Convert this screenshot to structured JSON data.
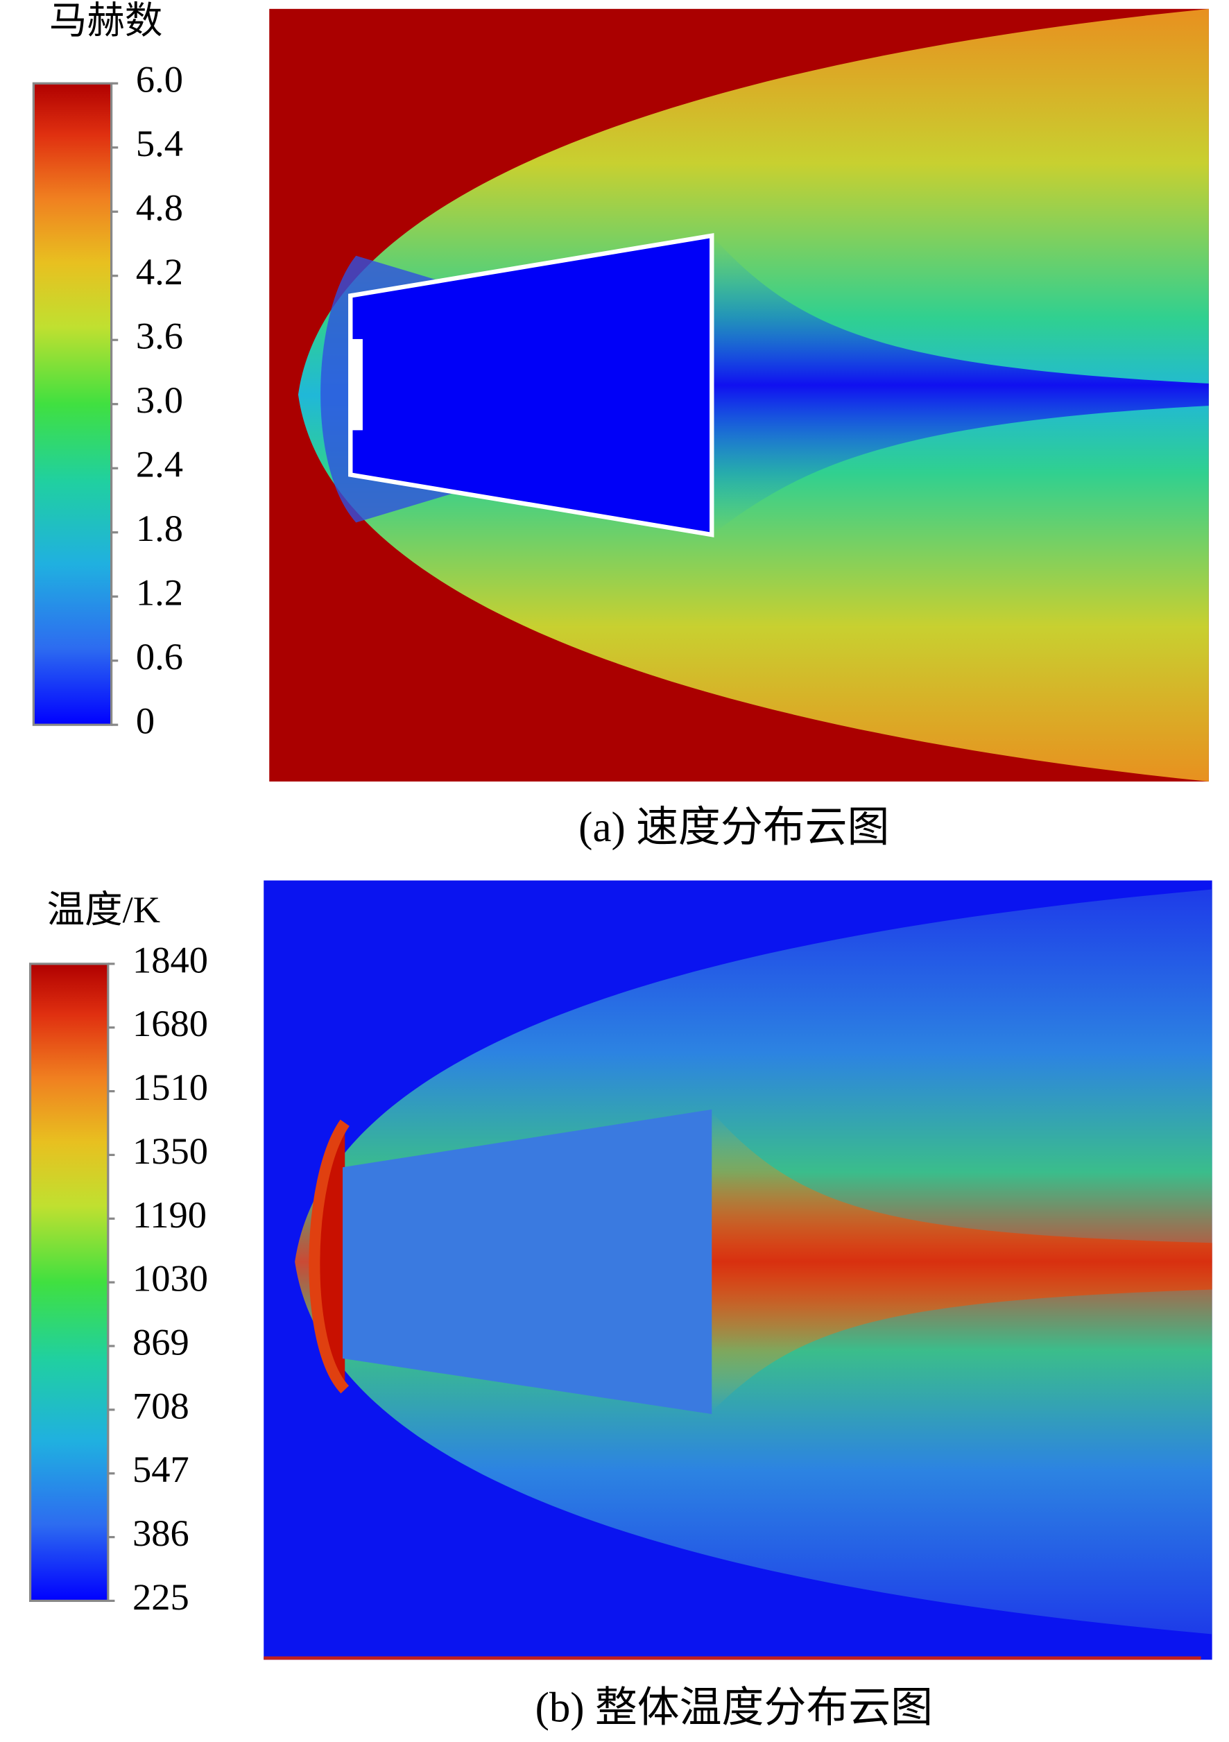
{
  "panels": [
    {
      "colorbar": {
        "title": "马赫数",
        "ticks": [
          "6.0",
          "5.4",
          "4.8",
          "4.2",
          "3.6",
          "3.0",
          "2.4",
          "1.8",
          "1.2",
          "0.6",
          "0"
        ]
      },
      "caption": "(a) 速度分布云图"
    },
    {
      "colorbar": {
        "title": "温度/K",
        "ticks": [
          "1840",
          "1680",
          "1510",
          "1350",
          "1190",
          "1030",
          "869",
          "708",
          "547",
          "386",
          "225"
        ]
      },
      "caption": "(b) 整体温度分布云图"
    }
  ]
}
